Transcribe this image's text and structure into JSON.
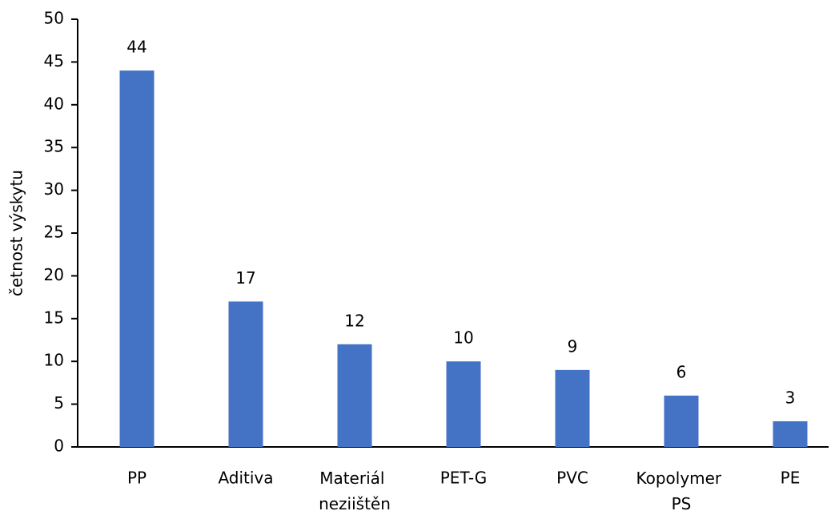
{
  "chart_data": {
    "type": "bar",
    "y_label": "četnost výskytu",
    "categories": [
      "PP",
      "Aditiva",
      "Materiál neziištěn",
      "PET-G",
      "PVC",
      "Kopolymer PS",
      "PE"
    ],
    "values": [
      44,
      17,
      12,
      10,
      9,
      6,
      3
    ],
    "color": "#4472c4",
    "ylim": [
      0,
      50
    ],
    "yticks": [
      0,
      5,
      10,
      15,
      20,
      25,
      30,
      35,
      40,
      45,
      50
    ],
    "grid": false
  }
}
